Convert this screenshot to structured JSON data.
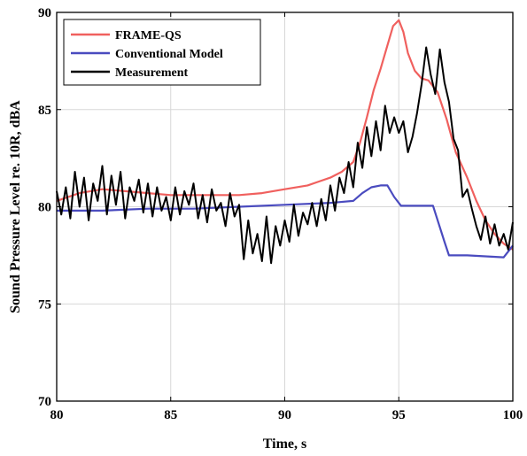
{
  "chart_data": {
    "type": "line",
    "title": "",
    "xlabel": "Time, s",
    "ylabel": "Sound Pressure Level re. 10R, dBA",
    "xlim": [
      80,
      100
    ],
    "ylim": [
      70,
      90
    ],
    "xticks": [
      "80",
      "85",
      "90",
      "95",
      "100"
    ],
    "yticks": [
      "70",
      "75",
      "80",
      "85",
      "90"
    ],
    "grid": true,
    "legend_position": "top-left",
    "series": [
      {
        "name": "FRAME-QS",
        "color": "#f0605e",
        "x": [
          80,
          81,
          82,
          83,
          84,
          85,
          86,
          87,
          88,
          89,
          90,
          91,
          91.5,
          92,
          92.5,
          93,
          93.3,
          93.6,
          93.9,
          94.2,
          94.5,
          94.75,
          95,
          95.2,
          95.4,
          95.7,
          96,
          96.3,
          96.7,
          97.1,
          97.5,
          98,
          98.4,
          98.8,
          99.2,
          99.6,
          100
        ],
        "y": [
          80.3,
          80.7,
          80.9,
          80.8,
          80.7,
          80.6,
          80.6,
          80.6,
          80.6,
          80.7,
          80.9,
          81.1,
          81.3,
          81.5,
          81.8,
          82.3,
          83.3,
          84.6,
          86.0,
          87.1,
          88.3,
          89.3,
          89.6,
          89.0,
          87.9,
          87.0,
          86.6,
          86.5,
          85.9,
          84.5,
          82.8,
          81.5,
          80.3,
          79.3,
          78.6,
          78.1,
          77.8
        ]
      },
      {
        "name": "Conventional Model",
        "color": "#4a4bbf",
        "x": [
          80,
          82,
          84,
          86,
          88,
          90,
          92,
          93,
          93.4,
          93.8,
          94.2,
          94.5,
          94.8,
          95.1,
          96,
          96.5,
          97,
          97.2,
          98,
          98.8,
          99.6,
          100
        ],
        "y": [
          79.8,
          79.8,
          79.9,
          79.9,
          80.0,
          80.1,
          80.2,
          80.3,
          80.7,
          81.0,
          81.1,
          81.1,
          80.5,
          80.05,
          80.05,
          80.05,
          78.2,
          77.5,
          77.5,
          77.45,
          77.4,
          78.0
        ]
      },
      {
        "name": "Measurement",
        "color": "#000000",
        "x": [
          80,
          80.2,
          80.4,
          80.6,
          80.8,
          81,
          81.2,
          81.4,
          81.6,
          81.8,
          82,
          82.2,
          82.4,
          82.6,
          82.8,
          83,
          83.2,
          83.4,
          83.6,
          83.8,
          84,
          84.2,
          84.4,
          84.6,
          84.8,
          85,
          85.2,
          85.4,
          85.6,
          85.8,
          86,
          86.2,
          86.4,
          86.6,
          86.8,
          87,
          87.2,
          87.4,
          87.6,
          87.8,
          88,
          88.2,
          88.4,
          88.6,
          88.8,
          89,
          89.2,
          89.4,
          89.6,
          89.8,
          90,
          90.2,
          90.4,
          90.6,
          90.8,
          91,
          91.2,
          91.4,
          91.6,
          91.8,
          92,
          92.2,
          92.4,
          92.6,
          92.8,
          93,
          93.2,
          93.4,
          93.6,
          93.8,
          94,
          94.2,
          94.4,
          94.6,
          94.8,
          95,
          95.2,
          95.4,
          95.6,
          95.8,
          96,
          96.2,
          96.4,
          96.6,
          96.8,
          97,
          97.2,
          97.4,
          97.6,
          97.8,
          98,
          98.2,
          98.4,
          98.6,
          98.8,
          99,
          99.2,
          99.4,
          99.6,
          99.8,
          100
        ],
        "y": [
          80.8,
          79.6,
          81.0,
          79.4,
          81.8,
          80.0,
          81.5,
          79.3,
          81.2,
          80.3,
          82.1,
          79.6,
          81.6,
          80.1,
          81.8,
          79.4,
          81.0,
          80.3,
          81.4,
          79.7,
          81.2,
          79.5,
          81.0,
          79.8,
          80.5,
          79.3,
          81.0,
          79.6,
          80.8,
          80.1,
          81.2,
          79.4,
          80.6,
          79.2,
          80.9,
          79.8,
          80.2,
          79.0,
          80.7,
          79.5,
          80.1,
          77.3,
          79.3,
          77.6,
          78.6,
          77.2,
          79.5,
          77.1,
          79.0,
          78.0,
          79.3,
          78.2,
          80.1,
          78.5,
          79.7,
          79.1,
          80.2,
          79.0,
          80.4,
          79.3,
          81.1,
          79.8,
          81.5,
          80.7,
          82.3,
          81.0,
          83.3,
          82.0,
          84.1,
          82.6,
          84.4,
          82.9,
          85.2,
          83.8,
          84.6,
          83.8,
          84.4,
          82.8,
          83.6,
          84.8,
          86.3,
          88.2,
          86.8,
          85.8,
          88.1,
          86.4,
          85.4,
          83.5,
          82.9,
          80.5,
          80.9,
          79.9,
          79.0,
          78.3,
          79.5,
          78.1,
          79.1,
          78.0,
          78.6,
          77.8,
          79.2
        ]
      }
    ]
  }
}
